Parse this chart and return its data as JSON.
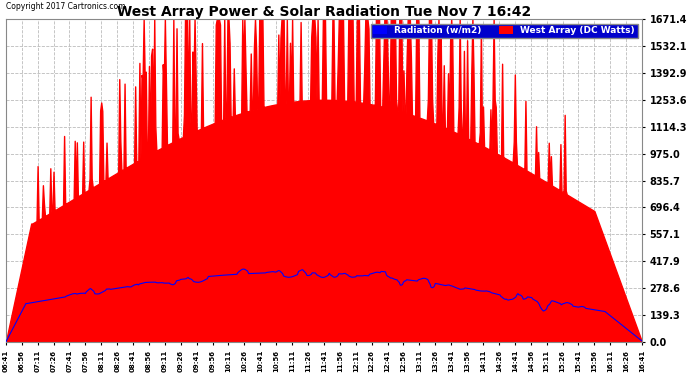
{
  "title": "West Array Power & Solar Radiation Tue Nov 7 16:42",
  "copyright": "Copyright 2017 Cartronics.com",
  "legend_radiation": "Radiation (w/m2)",
  "legend_west": "West Array (DC Watts)",
  "bg_color": "#ffffff",
  "plot_bg_color": "#ffffff",
  "grid_color": "#aaaaaa",
  "red_color": "#ff0000",
  "blue_color": "#0000ff",
  "ymin": 0.0,
  "ymax": 1671.4,
  "yticks": [
    0.0,
    139.3,
    278.6,
    417.9,
    557.1,
    696.4,
    835.7,
    975.0,
    1114.3,
    1253.6,
    1392.9,
    1532.1,
    1671.4
  ],
  "n_points": 601,
  "west_peak": 1671.4,
  "rad_peak": 380
}
